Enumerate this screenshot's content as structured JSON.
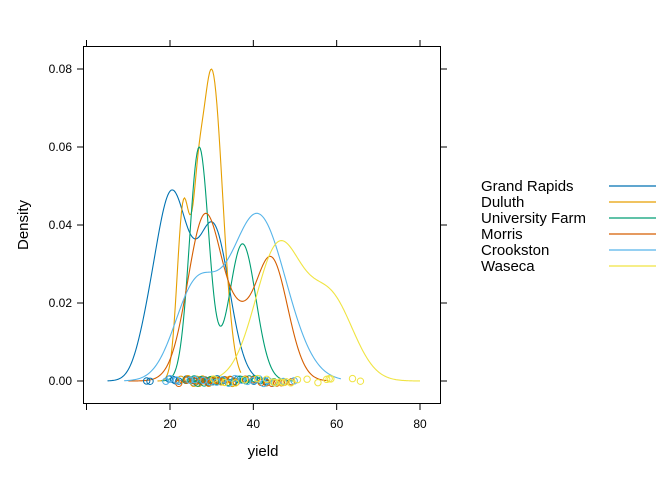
{
  "chart_data": {
    "type": "line",
    "subtype": "density plot with rug points",
    "title": "",
    "xlabel": "yield",
    "ylabel": "Density",
    "xlim": [
      3,
      85
    ],
    "ylim": [
      -0.0055,
      0.0855
    ],
    "x_ticks": [
      20,
      40,
      60,
      80
    ],
    "x_tick_labels": [
      "20",
      "40",
      "60",
      "80"
    ],
    "y_ticks": [
      0.0,
      0.02,
      0.04,
      0.06,
      0.08
    ],
    "y_tick_labels": [
      "0.00",
      "0.02",
      "0.04",
      "0.06",
      "0.08"
    ],
    "grid": false,
    "legend_position": "right",
    "series": [
      {
        "name": "Grand Rapids",
        "color": "#0072B2",
        "components": [
          [
            20.3,
            4.0,
            0.52
          ],
          [
            30.5,
            3.8,
            0.4
          ],
          [
            14.0,
            2.5,
            0.03
          ]
        ],
        "range": [
          5,
          44
        ],
        "peak": {
          "x": 20.3,
          "y": 0.049
        },
        "points": [
          14.4,
          15.2,
          19.8,
          20.9,
          21.3,
          22.1,
          24.0,
          25.7,
          26.2,
          27.6,
          28.4,
          29.1,
          30.3,
          31.3,
          32.4,
          33.0,
          35.1,
          36.2,
          40.1,
          42.8
        ]
      },
      {
        "name": "Duluth",
        "color": "#E69F00",
        "components": [
          [
            23.2,
            1.5,
            0.22
          ],
          [
            30.0,
            2.6,
            0.7
          ],
          [
            26.5,
            1.2,
            0.08
          ]
        ],
        "range": [
          17,
          37
        ],
        "peak": {
          "x": 30.2,
          "y": 0.08
        },
        "points": [
          22.6,
          24.3,
          25.7,
          26.9,
          27.8,
          28.6,
          29.3,
          30.0,
          30.8,
          31.5,
          32.3,
          33.4,
          34.4,
          35.0,
          28.1,
          29.7,
          27.3,
          31.1,
          26.4,
          33.1
        ]
      },
      {
        "name": "University Farm",
        "color": "#009E73",
        "components": [
          [
            27.0,
            2.3,
            0.55
          ],
          [
            37.4,
            3.2,
            0.45
          ]
        ],
        "range": [
          18,
          50
        ],
        "peak": {
          "x": 27.0,
          "y": 0.06
        },
        "points": [
          23.8,
          25.0,
          25.8,
          26.6,
          27.4,
          28.2,
          29.0,
          29.8,
          31.0,
          32.5,
          33.9,
          35.4,
          36.8,
          37.5,
          38.2,
          39.0,
          40.3,
          41.6,
          43.0,
          44.9
        ]
      },
      {
        "name": "Morris",
        "color": "#D55E00",
        "components": [
          [
            28.5,
            4.2,
            0.54
          ],
          [
            44.2,
            4.0,
            0.38
          ],
          [
            36.5,
            3.0,
            0.08
          ]
        ],
        "range": [
          10,
          58
        ],
        "peak": {
          "x": 28.5,
          "y": 0.043
        },
        "points": [
          22.1,
          24.0,
          25.7,
          27.3,
          28.4,
          29.2,
          30.0,
          31.6,
          33.0,
          34.6,
          35.9,
          38.1,
          40.0,
          41.9,
          43.2,
          44.5,
          45.6,
          46.7,
          47.4,
          49.2
        ]
      },
      {
        "name": "Crookston",
        "color": "#56B4E9",
        "components": [
          [
            41.0,
            6.8,
            0.72
          ],
          [
            26.0,
            5.0,
            0.28
          ]
        ],
        "range": [
          9,
          61
        ],
        "peak": {
          "x": 41.0,
          "y": 0.043
        },
        "points": [
          19.0,
          20.0,
          21.6,
          24.8,
          26.0,
          28.0,
          29.6,
          31.2,
          32.6,
          34.1,
          35.6,
          37.2,
          38.6,
          40.0,
          41.4,
          42.5,
          43.6,
          45.0,
          47.2,
          49.8
        ]
      },
      {
        "name": "Waseca",
        "color": "#F0E442",
        "components": [
          [
            46.0,
            5.5,
            0.62
          ],
          [
            58.5,
            5.5,
            0.38
          ]
        ],
        "range": [
          26,
          80
        ],
        "peak": {
          "x": 46.5,
          "y": 0.036
        },
        "points": [
          30.5,
          33.1,
          35.7,
          37.9,
          41.0,
          43.2,
          44.8,
          46.4,
          47.9,
          49.0,
          50.6,
          55.5,
          57.6,
          58.2,
          58.6,
          63.8,
          65.7,
          47.1,
          45.3,
          52.9
        ]
      }
    ]
  },
  "legend": {
    "items": [
      {
        "label": "Grand Rapids"
      },
      {
        "label": "Duluth"
      },
      {
        "label": "University Farm"
      },
      {
        "label": "Morris"
      },
      {
        "label": "Crookston"
      },
      {
        "label": "Waseca"
      }
    ]
  }
}
